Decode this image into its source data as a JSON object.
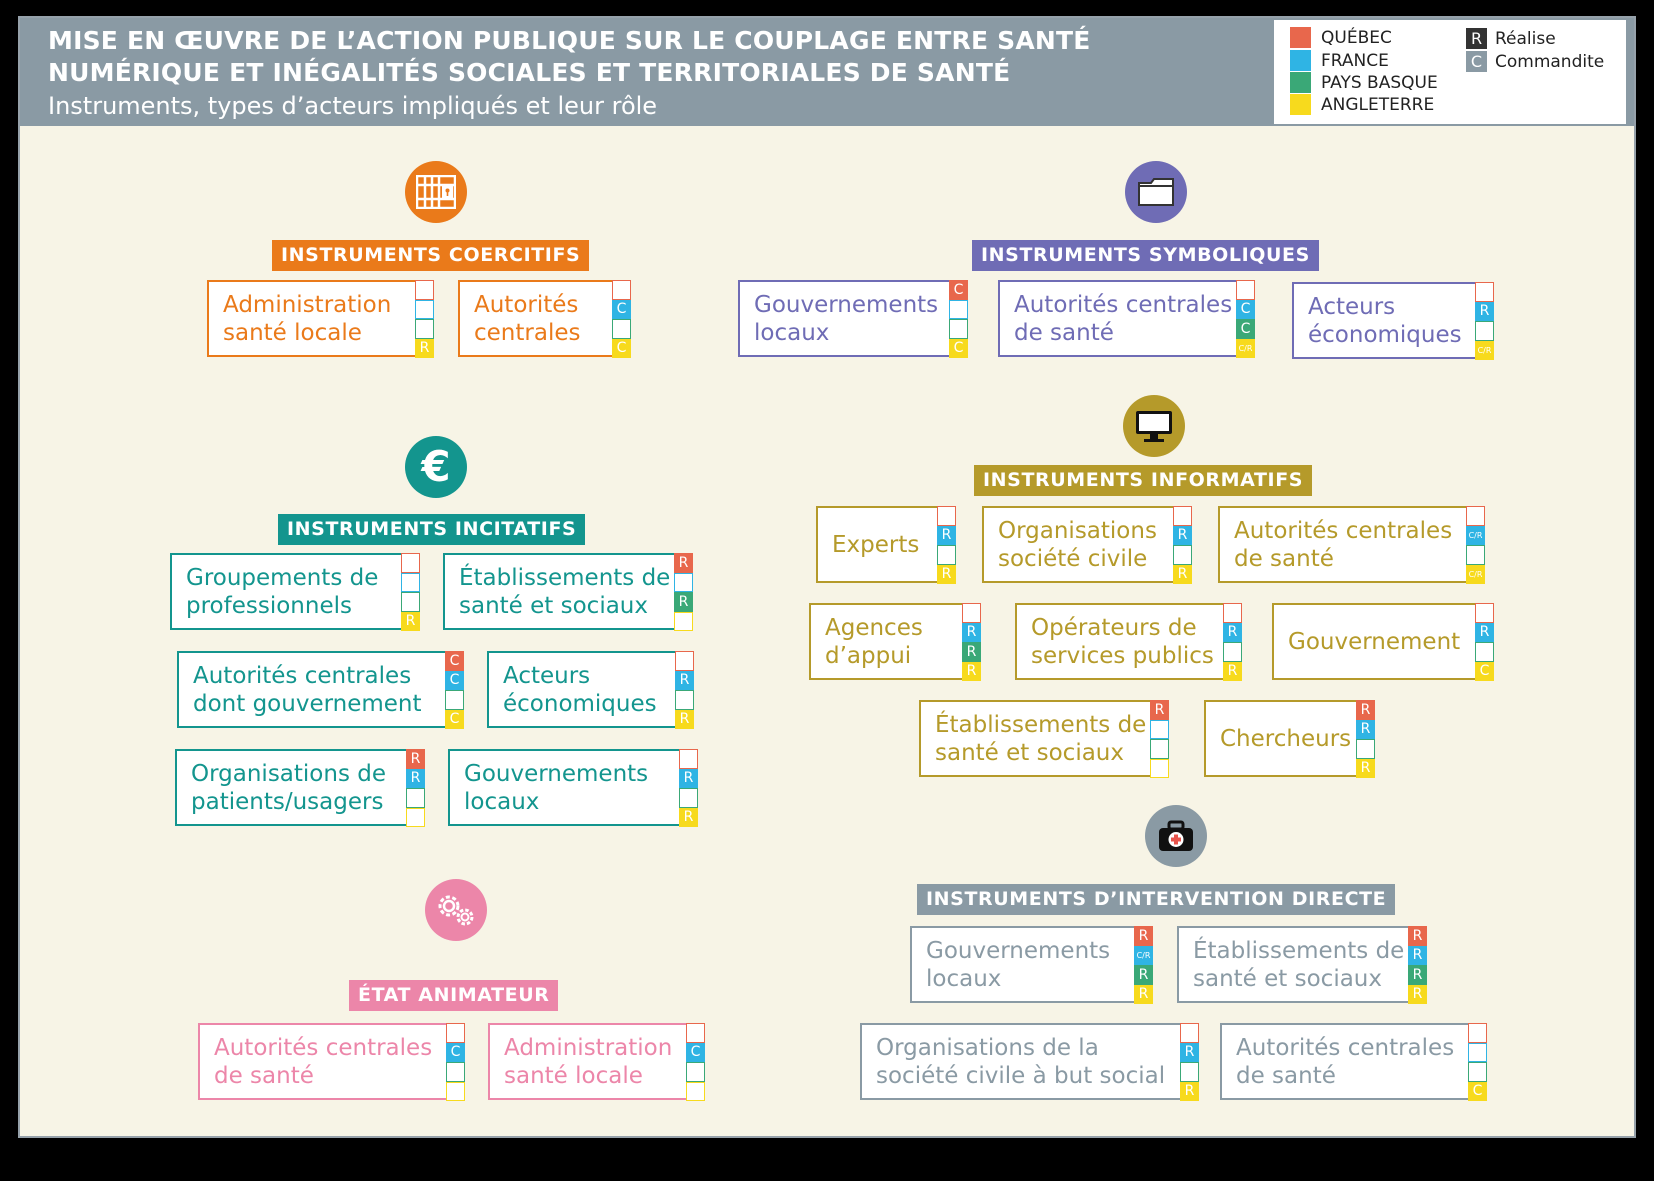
{
  "header": {
    "title_line1": "MISE EN ŒUVRE DE L’ACTION PUBLIQUE SUR LE COUPLAGE ENTRE SANTÉ",
    "title_line2": "NUMÉRIQUE ET INÉGALITÉS SOCIALES ET TERRITORIALES DE SANTÉ",
    "subtitle": "Instruments, types d’acteurs impliqués et leur rôle"
  },
  "legend": {
    "countries": [
      {
        "name": "QUÉBEC",
        "color": "#e8674c"
      },
      {
        "name": "FRANCE",
        "color": "#2fb4e4"
      },
      {
        "name": "PAYS BASQUE",
        "color": "#3aa877"
      },
      {
        "name": "ANGLETERRE",
        "color": "#f7da1d"
      }
    ],
    "roles": [
      {
        "letter": "R",
        "label": "Réalise",
        "color": "#333333"
      },
      {
        "letter": "C",
        "label": "Commandite",
        "color": "#8a9aa4"
      }
    ]
  },
  "sections": [
    {
      "id": "coercitifs",
      "title": "INSTRUMENTS COERCITIFS",
      "color": "#ea7a1a",
      "icon": "prison-bars-icon",
      "actors": [
        {
          "label": "Administration\nsanté locale",
          "roles": [
            "",
            "",
            "",
            "R"
          ]
        },
        {
          "label": "Autorités\ncentrales",
          "roles": [
            "",
            "C",
            "",
            "C"
          ]
        }
      ]
    },
    {
      "id": "symboliques",
      "title": "INSTRUMENTS SYMBOLIQUES",
      "color": "#6f6cb5",
      "icon": "folder-icon",
      "actors": [
        {
          "label": "Gouvernements\nlocaux",
          "roles": [
            "C",
            "",
            "",
            "C"
          ]
        },
        {
          "label": "Autorités centrales\nde santé",
          "roles": [
            "",
            "C",
            "C",
            "C/R"
          ]
        },
        {
          "label": "Acteurs\néconomiques",
          "roles": [
            "",
            "R",
            "",
            "C/R"
          ]
        }
      ]
    },
    {
      "id": "informatifs",
      "title": "INSTRUMENTS INFORMATIFS",
      "color": "#b59a2a",
      "icon": "monitor-icon",
      "actors": [
        {
          "label": "Experts",
          "roles": [
            "",
            "R",
            "",
            "R"
          ]
        },
        {
          "label": "Organisations\nsociété civile",
          "roles": [
            "",
            "R",
            "",
            "R"
          ]
        },
        {
          "label": "Autorités centrales\nde santé",
          "roles": [
            "",
            "C/R",
            "",
            "C/R"
          ]
        },
        {
          "label": "Agences\nd’appui",
          "roles": [
            "",
            "R",
            "R",
            "R"
          ]
        },
        {
          "label": "Opérateurs de\nservices publics",
          "roles": [
            "",
            "R",
            "",
            "R"
          ]
        },
        {
          "label": "Gouvernement",
          "roles": [
            "",
            "R",
            "",
            "C"
          ]
        },
        {
          "label": "Établissements de\nsanté et sociaux",
          "roles": [
            "R",
            "",
            "",
            ""
          ]
        },
        {
          "label": "Chercheurs",
          "roles": [
            "R",
            "R",
            "",
            "R"
          ]
        }
      ]
    },
    {
      "id": "incitatifs",
      "title": "INSTRUMENTS INCITATIFS",
      "color": "#13958e",
      "icon": "euro-icon",
      "actors": [
        {
          "label": "Groupements de\nprofessionnels",
          "roles": [
            "",
            "",
            "",
            "R"
          ]
        },
        {
          "label": "Établissements de\nsanté et sociaux",
          "roles": [
            "R",
            "",
            "R",
            ""
          ]
        },
        {
          "label": "Autorités centrales\ndont gouvernement",
          "roles": [
            "C",
            "C",
            "",
            "C"
          ]
        },
        {
          "label": "Acteurs\néconomiques",
          "roles": [
            "",
            "R",
            "",
            "R"
          ]
        },
        {
          "label": "Organisations de\npatients/usagers",
          "roles": [
            "R",
            "R",
            "",
            ""
          ]
        },
        {
          "label": "Gouvernements\nlocaux",
          "roles": [
            "",
            "R",
            "",
            "R"
          ]
        }
      ]
    },
    {
      "id": "intervention",
      "title": "INSTRUMENTS D’INTERVENTION DIRECTE",
      "color": "#8a9aa4",
      "icon": "first-aid-kit-icon",
      "actors": [
        {
          "label": "Gouvernements\nlocaux",
          "roles": [
            "R",
            "C/R",
            "R",
            "R"
          ]
        },
        {
          "label": "Établissements de\nsanté et sociaux",
          "roles": [
            "R",
            "R",
            "R",
            "R"
          ]
        },
        {
          "label": "Organisations de la\nsociété civile à but social",
          "roles": [
            "",
            "R",
            "",
            "R"
          ]
        },
        {
          "label": "Autorités centrales\nde santé",
          "roles": [
            "",
            "",
            "",
            "C"
          ]
        }
      ]
    },
    {
      "id": "animateur",
      "title": "ÉTAT ANIMATEUR",
      "color": "#ec86a9",
      "icon": "gears-icon",
      "actors": [
        {
          "label": "Autorités centrales\nde santé",
          "roles": [
            "",
            "C",
            "",
            ""
          ]
        },
        {
          "label": "Administration\nsanté locale",
          "roles": [
            "",
            "C",
            "",
            ""
          ]
        }
      ]
    }
  ]
}
